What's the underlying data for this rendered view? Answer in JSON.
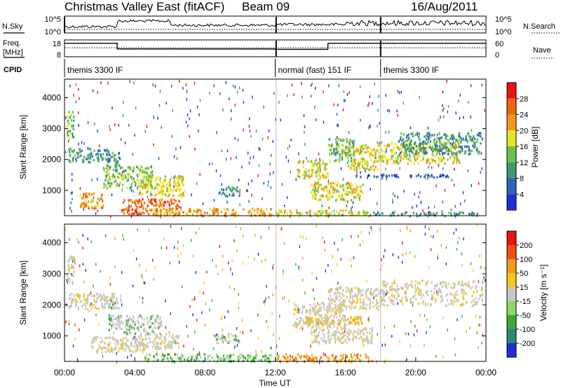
{
  "header": {
    "title": "Christmas Valley East (fitACF)",
    "beam": "Beam 09",
    "date": "16/Aug/2011"
  },
  "chart_data": [
    {
      "type": "line",
      "name": "noise-panel",
      "left_label": "N.Sky",
      "right_label": "N.Search",
      "left_ticks": [
        "10^5",
        "10^0"
      ],
      "right_ticks": [
        "10^5",
        "10^0"
      ]
    },
    {
      "type": "line",
      "name": "frequency-panel",
      "left_label_top": "Freq.",
      "left_label_bottom": "[MHz]",
      "right_label": "Nave",
      "left_ticks": [
        18,
        8
      ],
      "right_ticks": [
        60,
        0
      ],
      "freq_steps": [
        {
          "start": 0,
          "end": 3,
          "value": 16
        },
        {
          "start": 3,
          "end": 12,
          "value": 12.6
        },
        {
          "start": 12,
          "end": 15,
          "value": 12.4
        },
        {
          "start": 15,
          "end": 18,
          "value": 16
        },
        {
          "start": 18,
          "end": 24,
          "value": 16
        }
      ],
      "nave_level": 32
    },
    {
      "type": "table",
      "name": "cpid-bar",
      "label": "CPID",
      "segments": [
        {
          "start": 0,
          "end": 12,
          "label": "themis 3300 IF"
        },
        {
          "start": 12,
          "end": 18,
          "label": "normal (fast) 151 IF"
        },
        {
          "start": 18,
          "end": 24,
          "label": "themis 3300 IF"
        }
      ]
    },
    {
      "type": "heatmap",
      "name": "power-panel",
      "ylabel": "Slant Range [km]",
      "ylim": [
        180,
        4600
      ],
      "xlim": [
        0,
        24
      ],
      "y_ticks": [
        1000,
        2000,
        3000,
        4000
      ],
      "colorbar": {
        "label": "Power [dB]",
        "ticks": [
          4,
          8,
          12,
          16,
          20,
          24,
          28
        ],
        "colors": [
          "#1f2fd8",
          "#2f63c0",
          "#3f9a6e",
          "#6fbf52",
          "#e6e61e",
          "#f09a18",
          "#f06414",
          "#e81414"
        ]
      },
      "features": [
        {
          "t": [
            0.1,
            0.5
          ],
          "r": [
            2700,
            3600
          ],
          "level": 3
        },
        {
          "t": [
            0.2,
            2.5
          ],
          "r": [
            1950,
            2400
          ],
          "level": 2
        },
        {
          "t": [
            2.3,
            3.2
          ],
          "r": [
            1750,
            2250
          ],
          "level": 2
        },
        {
          "t": [
            2.2,
            5.0
          ],
          "r": [
            1100,
            1800
          ],
          "level": 3
        },
        {
          "t": [
            4.2,
            6.8
          ],
          "r": [
            850,
            1500
          ],
          "level": 4
        },
        {
          "t": [
            0.8,
            2.2
          ],
          "r": [
            450,
            950
          ],
          "level": 5
        },
        {
          "t": [
            3.2,
            6.5
          ],
          "r": [
            250,
            750
          ],
          "level": 6
        },
        {
          "t": [
            5.0,
            11.8
          ],
          "r": [
            200,
            450
          ],
          "level": 5
        },
        {
          "t": [
            8.8,
            10.0
          ],
          "r": [
            850,
            1150
          ],
          "level": 2
        },
        {
          "t": [
            13.2,
            15.0
          ],
          "r": [
            1400,
            2000
          ],
          "level": 4
        },
        {
          "t": [
            14.0,
            17.0
          ],
          "r": [
            700,
            1300
          ],
          "level": 4
        },
        {
          "t": [
            15.0,
            16.5
          ],
          "r": [
            1950,
            2700
          ],
          "level": 3
        },
        {
          "t": [
            16.0,
            17.8
          ],
          "r": [
            1700,
            2500
          ],
          "level": 4
        },
        {
          "t": [
            17.8,
            22.5
          ],
          "r": [
            1900,
            2600
          ],
          "level": 4
        },
        {
          "t": [
            19.0,
            23.8
          ],
          "r": [
            2200,
            2900
          ],
          "level": 2
        },
        {
          "t": [
            12.0,
            17.5
          ],
          "r": [
            200,
            400
          ],
          "level": 4
        },
        {
          "t": [
            16.5,
            22.0
          ],
          "r": [
            1450,
            1550
          ],
          "level": 1
        },
        {
          "t": [
            17.5,
            23.5
          ],
          "r": [
            200,
            330
          ],
          "level": 2
        }
      ]
    },
    {
      "type": "heatmap",
      "name": "velocity-panel",
      "ylabel": "Slant Range [km]",
      "xlabel": "Time UT",
      "ylim": [
        180,
        4600
      ],
      "xlim": [
        0,
        24
      ],
      "y_ticks": [
        1000,
        2000,
        3000,
        4000
      ],
      "x_ticks": [
        "00:00",
        "04:00",
        "08:00",
        "12:00",
        "16:00",
        "20:00",
        "00:00"
      ],
      "colorbar": {
        "label": "Velocity [m s⁻¹]",
        "ticks": [
          200,
          100,
          50,
          15,
          -15,
          -50,
          -100,
          -200
        ],
        "colors": [
          "#1f2fd8",
          "#2f8a6e",
          "#3fa83a",
          "#8fd86a",
          "#c8c8c8",
          "#f0c81e",
          "#f09a18",
          "#f05014",
          "#e81414"
        ]
      },
      "features": [
        {
          "t": [
            0.1,
            0.5
          ],
          "r": [
            2700,
            3600
          ],
          "level": 4
        },
        {
          "t": [
            0.2,
            3.2
          ],
          "r": [
            1900,
            2400
          ],
          "level": 4
        },
        {
          "t": [
            2.2,
            3.0
          ],
          "r": [
            1900,
            2200
          ],
          "level": 3
        },
        {
          "t": [
            1.5,
            4.5
          ],
          "r": [
            500,
            1000
          ],
          "level": 4
        },
        {
          "t": [
            4.0,
            6.5
          ],
          "r": [
            600,
            1100
          ],
          "level": 4
        },
        {
          "t": [
            2.5,
            5.5
          ],
          "r": [
            1100,
            1700
          ],
          "level": 3
        },
        {
          "t": [
            4.5,
            11.8
          ],
          "r": [
            200,
            450
          ],
          "level": 2
        },
        {
          "t": [
            8.5,
            10.0
          ],
          "r": [
            800,
            1100
          ],
          "level": 3
        },
        {
          "t": [
            12.0,
            17.5
          ],
          "r": [
            200,
            450
          ],
          "level": 6
        },
        {
          "t": [
            13.0,
            16.0
          ],
          "r": [
            1300,
            2100
          ],
          "level": 4
        },
        {
          "t": [
            14.0,
            17.5
          ],
          "r": [
            800,
            1300
          ],
          "level": 4
        },
        {
          "t": [
            15.0,
            18.0
          ],
          "r": [
            1900,
            2600
          ],
          "level": 4
        },
        {
          "t": [
            18.0,
            23.8
          ],
          "r": [
            2000,
            2800
          ],
          "level": 4
        },
        {
          "t": [
            13.5,
            17.0
          ],
          "r": [
            1400,
            1650
          ],
          "level": 5
        }
      ]
    }
  ]
}
